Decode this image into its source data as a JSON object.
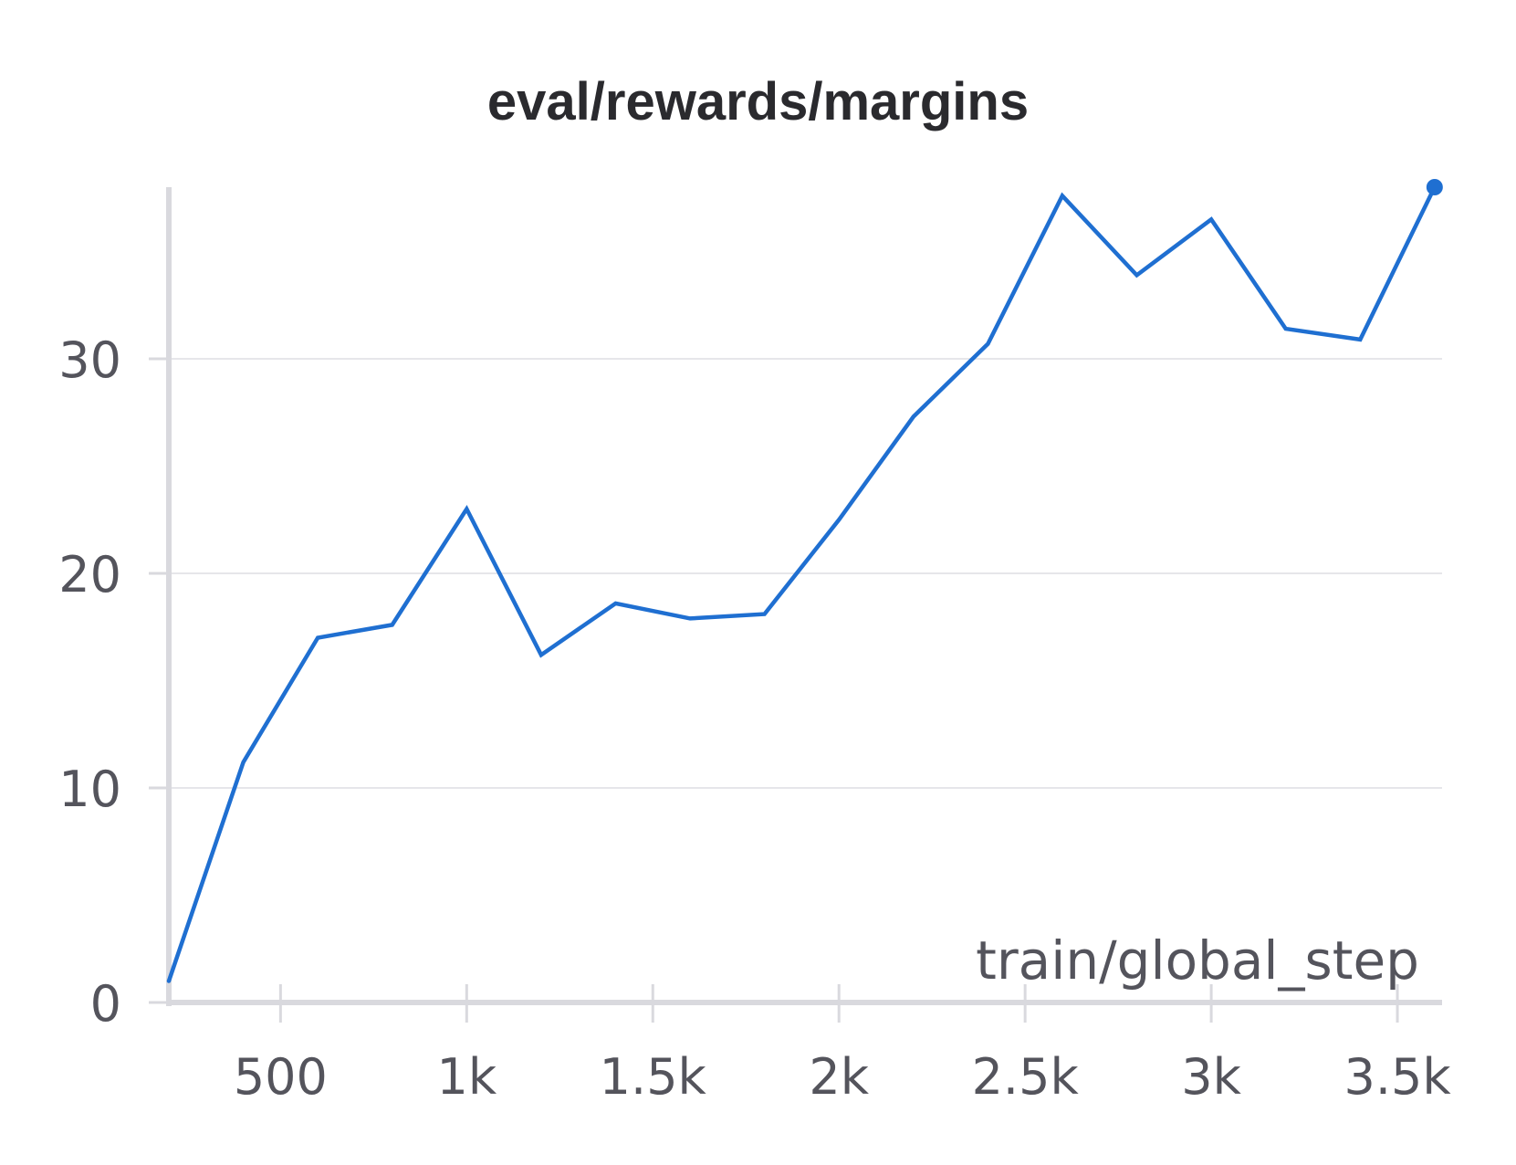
{
  "colors": {
    "series": "#1f6fd1",
    "grid": "#e6e6ea",
    "axis": "#d9d9de",
    "text": "#54545c",
    "title": "#2a2a2e"
  },
  "chart_data": {
    "type": "line",
    "title": "eval/rewards/margins",
    "xlabel": "train/global_step",
    "ylabel": "",
    "xlim": [
      200,
      3620
    ],
    "ylim": [
      0,
      38
    ],
    "grid": true,
    "legend": "none",
    "x_ticks": [
      {
        "value": 500,
        "label": "500"
      },
      {
        "value": 1000,
        "label": "1k"
      },
      {
        "value": 1500,
        "label": "1.5k"
      },
      {
        "value": 2000,
        "label": "2k"
      },
      {
        "value": 2500,
        "label": "2.5k"
      },
      {
        "value": 3000,
        "label": "3k"
      },
      {
        "value": 3500,
        "label": "3.5k"
      }
    ],
    "y_ticks": [
      {
        "value": 0,
        "label": "0"
      },
      {
        "value": 10,
        "label": "10"
      },
      {
        "value": 20,
        "label": "20"
      },
      {
        "value": 30,
        "label": "30"
      }
    ],
    "series": [
      {
        "x": [
          200,
          400,
          600,
          800,
          1000,
          1200,
          1400,
          1600,
          1800,
          2000,
          2200,
          2400,
          2600,
          2800,
          3000,
          3200,
          3400,
          3600
        ],
        "values": [
          1.0,
          11.2,
          17.0,
          17.6,
          23.0,
          16.2,
          18.6,
          17.9,
          18.1,
          22.5,
          27.3,
          30.7,
          37.6,
          33.9,
          36.5,
          31.4,
          30.9,
          38.0
        ]
      }
    ],
    "end_marker": true
  }
}
